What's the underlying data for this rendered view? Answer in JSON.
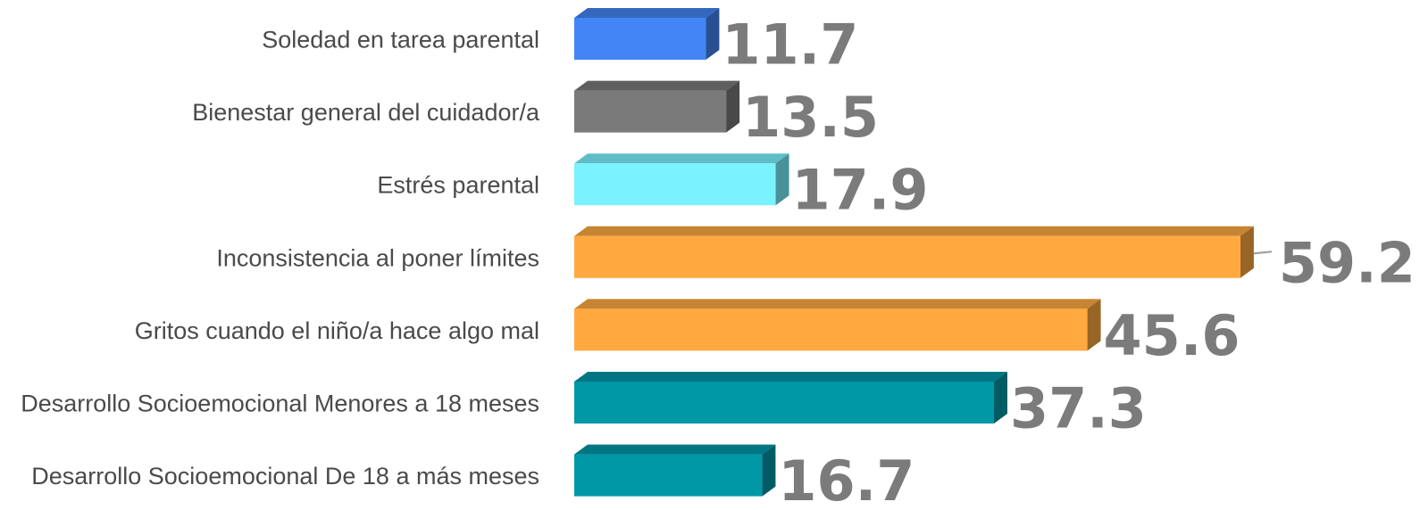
{
  "chart_data": {
    "type": "bar",
    "orientation": "horizontal",
    "style": "3d",
    "categories": [
      "Soledad en tarea parental",
      "Bienestar general del cuidador/a",
      "Estrés parental",
      "Inconsistencia al poner límites",
      "Gritos cuando el niño/a hace algo mal",
      "Desarrollo Socioemocional Menores a 18 meses",
      "Desarrollo Socioemocional De 18 a más meses"
    ],
    "values": [
      11.7,
      13.5,
      17.9,
      59.2,
      45.6,
      37.3,
      16.7
    ],
    "value_labels": [
      "11.7",
      "13.5",
      "17.9",
      "59.2",
      "45.6",
      "37.3",
      "16.7"
    ],
    "colors": [
      "#4285f4",
      "#7a7a7a",
      "#7af2ff",
      "#ffa940",
      "#ffa940",
      "#0097a7",
      "#0097a7"
    ],
    "xlim": [
      0,
      60
    ],
    "grid": false,
    "legend": "none",
    "title": "",
    "xlabel": "",
    "ylabel": ""
  }
}
